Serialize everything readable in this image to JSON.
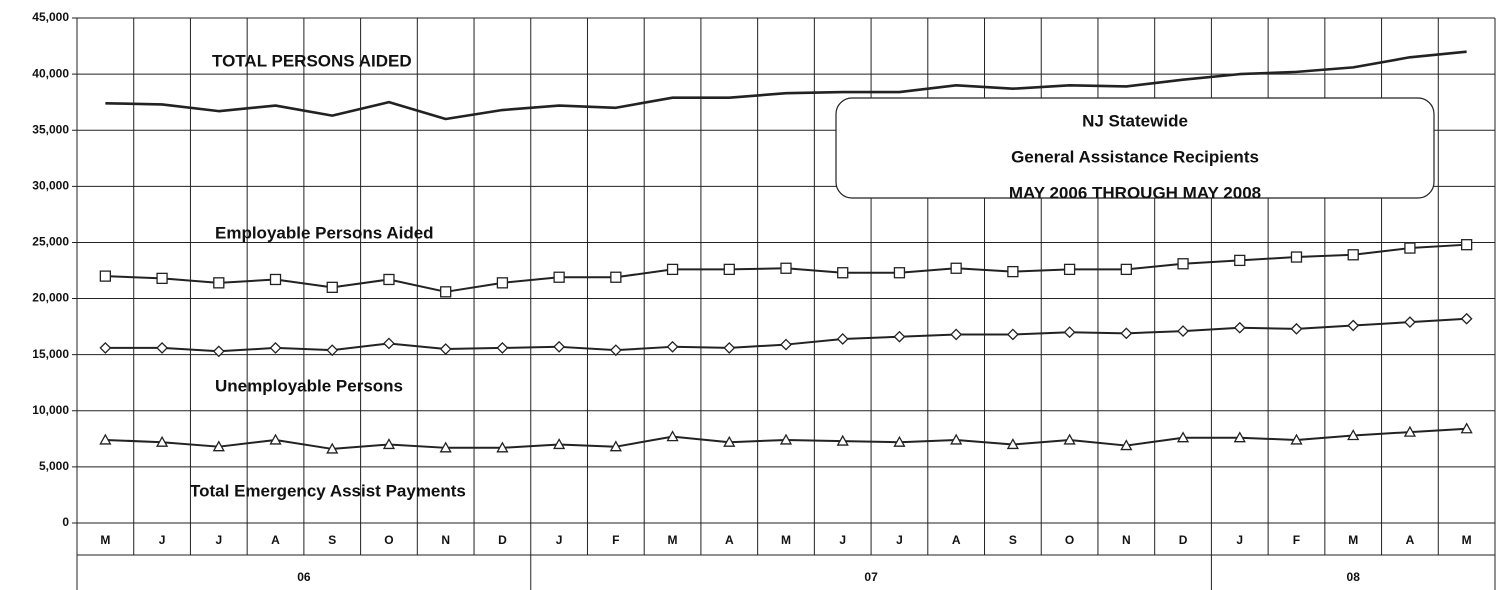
{
  "chart_data": {
    "type": "line",
    "title": "NJ Statewide",
    "subtitle": "General Assistance Recipients",
    "period": "MAY 2006 THROUGH MAY 2008",
    "categories": [
      "M",
      "J",
      "J",
      "A",
      "S",
      "O",
      "N",
      "D",
      "J",
      "F",
      "M",
      "A",
      "M",
      "J",
      "J",
      "A",
      "S",
      "O",
      "N",
      "D",
      "J",
      "F",
      "M",
      "A",
      "M"
    ],
    "year_groups": [
      {
        "label": "06",
        "span": 8
      },
      {
        "label": "07",
        "span": 12
      },
      {
        "label": "08",
        "span": 5
      }
    ],
    "ylim": [
      0,
      45000
    ],
    "yticks": [
      0,
      {
        "value": 5000,
        "label": "5,000"
      },
      {
        "value": 10000,
        "label": "10,000"
      },
      {
        "value": 15000,
        "label": "15,000"
      },
      {
        "value": 20000,
        "label": "20,000"
      },
      {
        "value": 25000,
        "label": "25,000"
      },
      {
        "value": 30000,
        "label": "30,000"
      },
      {
        "value": 35000,
        "label": "35,000"
      },
      {
        "value": 40000,
        "label": "40,000"
      },
      {
        "value": 45000,
        "label": "45,000"
      }
    ],
    "grid": true,
    "series": [
      {
        "name": "TOTAL PERSONS AIDED",
        "color": "#222",
        "marker": "none",
        "values": [
          37400,
          37300,
          36700,
          37200,
          36300,
          37500,
          36000,
          36800,
          37200,
          37000,
          37900,
          37900,
          38300,
          38400,
          38400,
          39000,
          38700,
          39000,
          38900,
          39500,
          40000,
          40200,
          40600,
          41500,
          42000
        ]
      },
      {
        "name": "Employable Persons Aided",
        "color": "#222",
        "marker": "square",
        "values": [
          22000,
          21800,
          21400,
          21700,
          21000,
          21700,
          20600,
          21400,
          21900,
          21900,
          22600,
          22600,
          22700,
          22300,
          22300,
          22700,
          22400,
          22600,
          22600,
          23100,
          23400,
          23700,
          23900,
          24500,
          24800
        ]
      },
      {
        "name": "Unemployable Persons",
        "color": "#222",
        "marker": "diamond",
        "values": [
          15600,
          15600,
          15300,
          15600,
          15400,
          16000,
          15500,
          15600,
          15700,
          15400,
          15700,
          15600,
          15900,
          16400,
          16600,
          16800,
          16800,
          17000,
          16900,
          17100,
          17400,
          17300,
          17600,
          17900,
          18200
        ]
      },
      {
        "name": "Total Emergency Assist Payments",
        "color": "#222",
        "marker": "triangle",
        "values": [
          7400,
          7200,
          6800,
          7400,
          6600,
          7000,
          6700,
          6700,
          7000,
          6800,
          7700,
          7200,
          7400,
          7300,
          7200,
          7400,
          7000,
          7400,
          6900,
          7600,
          7600,
          7400,
          7800,
          8100,
          8400
        ]
      }
    ]
  }
}
